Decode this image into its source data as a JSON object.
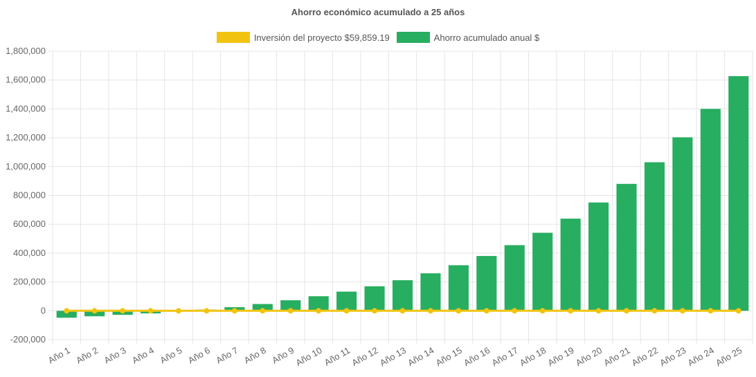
{
  "colors": {
    "investment": "#f2c40f",
    "savings": "#27ae60",
    "grid": "#e5e5e5",
    "text": "#666666"
  },
  "chart_data": {
    "type": "bar",
    "title": "Ahorro económico acumulado a 25 años",
    "legend_position": "top",
    "grid": true,
    "ylim": [
      -200000,
      1800000
    ],
    "y_ticks": [
      -200000,
      0,
      200000,
      400000,
      600000,
      800000,
      1000000,
      1200000,
      1400000,
      1600000,
      1800000
    ],
    "y_tick_labels": [
      "-200,000",
      "0",
      "200,000",
      "400,000",
      "600,000",
      "800,000",
      "1,000,000",
      "1,200,000",
      "1,400,000",
      "1,600,000",
      "1,800,000"
    ],
    "categories": [
      "Año 1",
      "Año 2",
      "Año 3",
      "Año 4",
      "Año 5",
      "Año 6",
      "Año 7",
      "Año 8",
      "Año 9",
      "Año 10",
      "Año 11",
      "Año 12",
      "Año 13",
      "Año 14",
      "Año 15",
      "Año 16",
      "Año 17",
      "Año 18",
      "Año 19",
      "Año 20",
      "Año 21",
      "Año 22",
      "Año 23",
      "Año 24",
      "Año 25"
    ],
    "series": [
      {
        "name": "Inversión del proyecto $59,859.19",
        "type": "line",
        "color": "#f2c40f",
        "values": [
          0,
          0,
          0,
          0,
          0,
          0,
          0,
          0,
          0,
          0,
          0,
          0,
          0,
          0,
          0,
          0,
          0,
          0,
          0,
          0,
          0,
          0,
          0,
          0,
          0
        ]
      },
      {
        "name": "Ahorro acumulado anual $",
        "type": "bar",
        "color": "#27ae60",
        "values": [
          -48000,
          -38000,
          -28000,
          -18000,
          -6000,
          8000,
          25000,
          47000,
          73000,
          101000,
          133000,
          170000,
          212000,
          260000,
          316000,
          380000,
          455000,
          541000,
          639000,
          751000,
          880000,
          1030000,
          1203000,
          1400000,
          1627000
        ]
      }
    ]
  }
}
